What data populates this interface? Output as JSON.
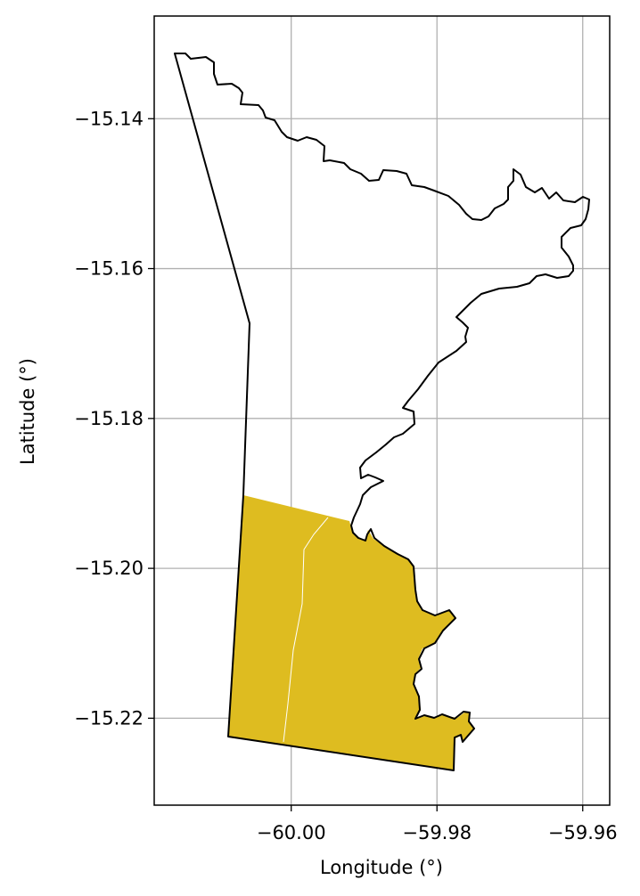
{
  "map": {
    "xlabel": "Longitude (°)",
    "ylabel": "Latitude (°)",
    "x_ticks": [
      {
        "value": -60.0,
        "label": "−60.00"
      },
      {
        "value": -59.98,
        "label": "−59.98"
      },
      {
        "value": -59.96,
        "label": "−59.96"
      }
    ],
    "y_ticks": [
      {
        "value": -15.14,
        "label": "−15.14"
      },
      {
        "value": -15.16,
        "label": "−15.16"
      },
      {
        "value": -15.18,
        "label": "−15.18"
      },
      {
        "value": -15.2,
        "label": "−15.20"
      },
      {
        "value": -15.22,
        "label": "−15.22"
      }
    ],
    "xlim": [
      -60.0188,
      -59.9563
    ],
    "ylim": [
      -15.2316,
      -15.1263
    ],
    "grid": true,
    "colors": {
      "highlight_fill": "#DEBC20",
      "outline": "#000000",
      "grid": "#b0b0b0",
      "inner_line": "#ffffff"
    }
  }
}
